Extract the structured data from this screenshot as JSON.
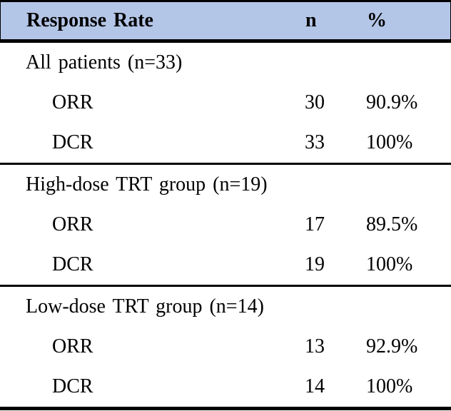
{
  "colors": {
    "header_bg": "#b4c6e7",
    "border": "#000000",
    "text": "#000000"
  },
  "table": {
    "header": {
      "col1": "Response Rate",
      "col2": "n",
      "col3": "%"
    },
    "sections": [
      {
        "title": "All patients (n=33)",
        "rows": [
          {
            "label": "ORR",
            "n": "30",
            "pct": "90.9%"
          },
          {
            "label": "DCR",
            "n": "33",
            "pct": "100%"
          }
        ]
      },
      {
        "title": "High-dose TRT group (n=19)",
        "rows": [
          {
            "label": "ORR",
            "n": "17",
            "pct": "89.5%"
          },
          {
            "label": "DCR",
            "n": "19",
            "pct": "100%"
          }
        ]
      },
      {
        "title": "Low-dose TRT group (n=14)",
        "rows": [
          {
            "label": "ORR",
            "n": "13",
            "pct": "92.9%"
          },
          {
            "label": "DCR",
            "n": "14",
            "pct": "100%"
          }
        ]
      }
    ]
  },
  "chart_data": {
    "type": "table",
    "title": "Response Rate",
    "columns": [
      "Response Rate",
      "n",
      "%"
    ],
    "rows": [
      [
        "All patients (n=33)",
        "",
        ""
      ],
      [
        "ORR",
        "30",
        "90.9%"
      ],
      [
        "DCR",
        "33",
        "100%"
      ],
      [
        "High-dose TRT group (n=19)",
        "",
        ""
      ],
      [
        "ORR",
        "17",
        "89.5%"
      ],
      [
        "DCR",
        "19",
        "100%"
      ],
      [
        "Low-dose TRT group (n=14)",
        "",
        ""
      ],
      [
        "ORR",
        "13",
        "92.9%"
      ],
      [
        "DCR",
        "14",
        "100%"
      ]
    ]
  }
}
